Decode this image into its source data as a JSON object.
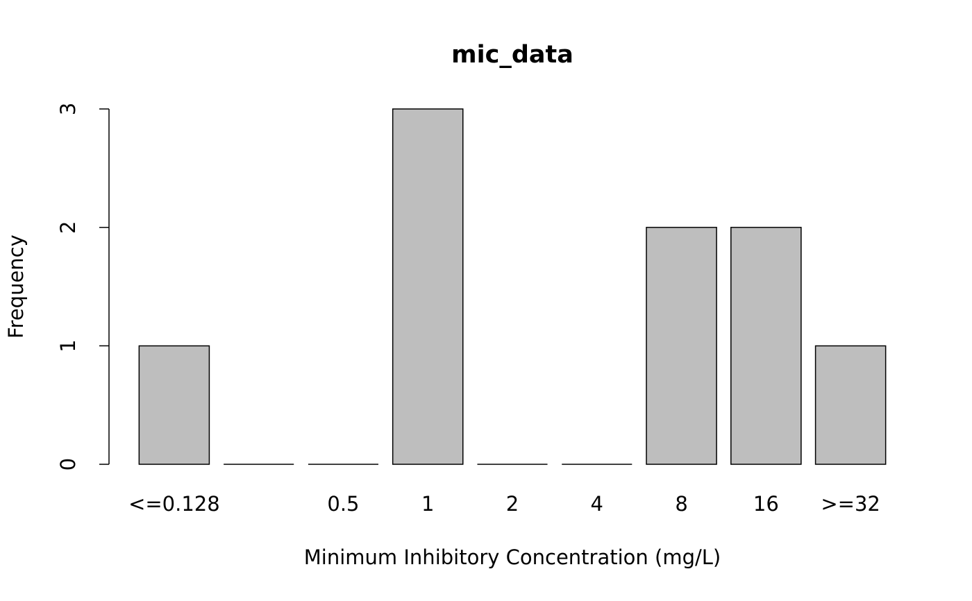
{
  "chart_data": {
    "type": "bar",
    "title": "mic_data",
    "x_label": "Minimum Inhibitory Concentration (mg/L)",
    "y_label": "Frequency",
    "categories": [
      "<=0.128",
      null,
      "0.5",
      "1",
      "2",
      "4",
      "8",
      "16",
      ">=32"
    ],
    "values": [
      1,
      0,
      0,
      3,
      0,
      0,
      2,
      2,
      1
    ],
    "color": "#bebebe",
    "ylim": [
      0,
      3
    ],
    "yticks": [
      0,
      1,
      2,
      3
    ],
    "grid": false
  }
}
